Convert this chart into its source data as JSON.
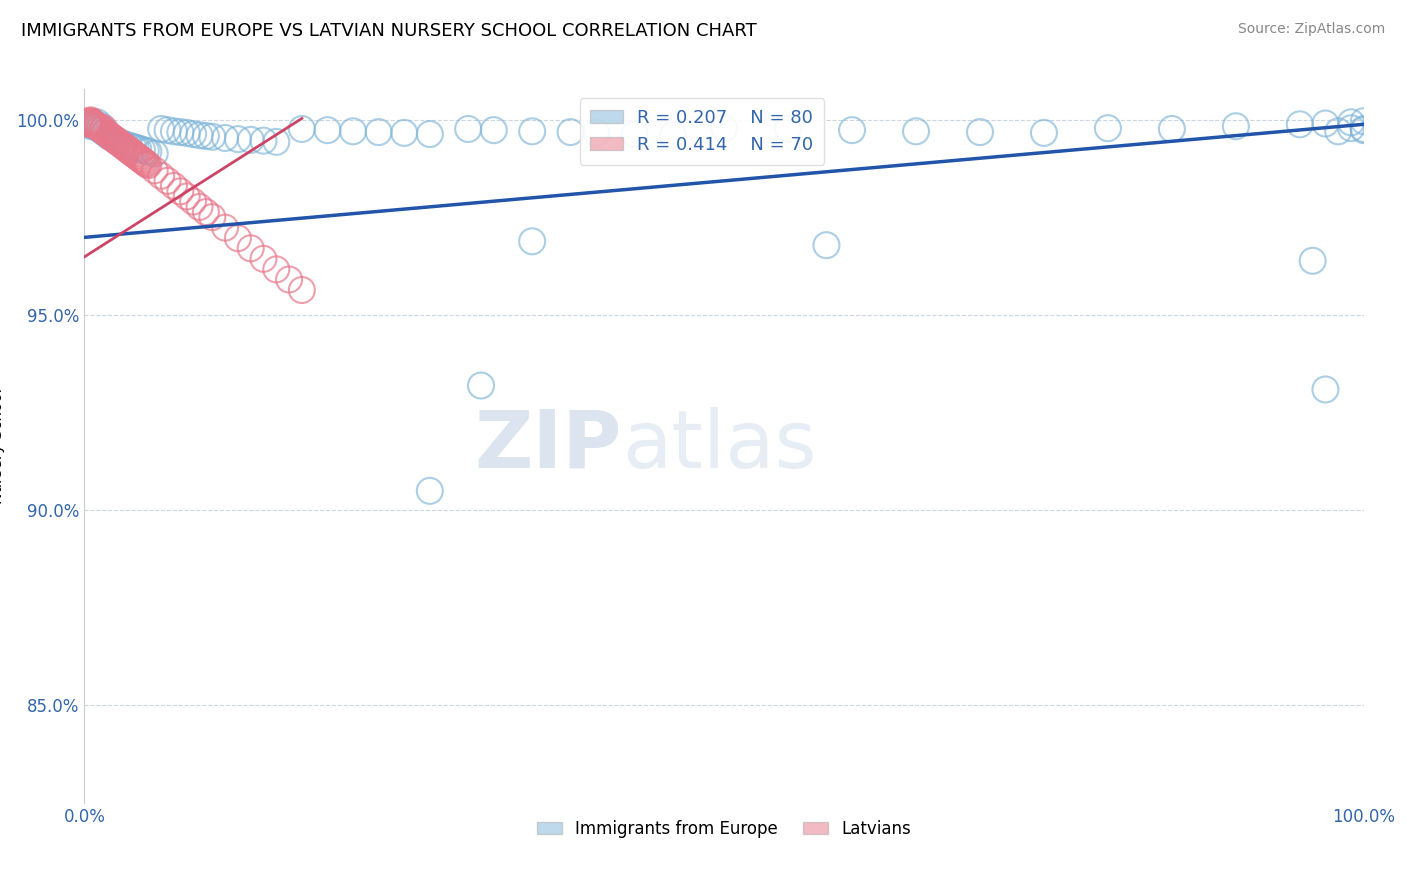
{
  "title": "IMMIGRANTS FROM EUROPE VS LATVIAN NURSERY SCHOOL CORRELATION CHART",
  "source": "Source: ZipAtlas.com",
  "ylabel": "Nursery School",
  "xlim": [
    0.0,
    1.0
  ],
  "ylim": [
    0.825,
    1.008
  ],
  "yticks": [
    0.85,
    0.9,
    0.95,
    1.0
  ],
  "ytick_labels": [
    "85.0%",
    "90.0%",
    "95.0%",
    "100.0%"
  ],
  "xtick_labels": [
    "0.0%",
    "100.0%"
  ],
  "legend_blue_r": "R = 0.207",
  "legend_blue_n": "N = 80",
  "legend_pink_r": "R = 0.414",
  "legend_pink_n": "N = 70",
  "legend_label_blue": "Immigrants from Europe",
  "legend_label_pink": "Latvians",
  "blue_color": "#7EB4D8",
  "pink_color": "#E8778A",
  "trend_blue_color": "#2255AA",
  "trend_pink_color": "#CC4466",
  "watermark_zip": "ZIP",
  "watermark_atlas": "atlas",
  "blue_scatter_x": [
    0.003,
    0.005,
    0.007,
    0.008,
    0.009,
    0.01,
    0.011,
    0.012,
    0.013,
    0.014,
    0.015,
    0.016,
    0.017,
    0.018,
    0.019,
    0.02,
    0.022,
    0.024,
    0.025,
    0.027,
    0.03,
    0.032,
    0.035,
    0.038,
    0.04,
    0.042,
    0.045,
    0.048,
    0.05,
    0.055,
    0.06,
    0.065,
    0.07,
    0.075,
    0.08,
    0.085,
    0.09,
    0.095,
    0.1,
    0.11,
    0.12,
    0.13,
    0.14,
    0.15,
    0.17,
    0.19,
    0.21,
    0.23,
    0.25,
    0.27,
    0.3,
    0.32,
    0.35,
    0.38,
    0.4,
    0.43,
    0.46,
    0.5,
    0.55,
    0.6,
    0.65,
    0.7,
    0.75,
    0.8,
    0.85,
    0.9,
    0.95,
    0.97,
    0.99,
    1.0,
    0.99,
    1.0,
    1.0,
    0.98,
    0.97,
    0.96,
    0.31,
    0.35,
    0.27,
    0.58
  ],
  "blue_scatter_y": [
    0.999,
    0.9985,
    0.9992,
    0.9988,
    0.9983,
    0.9995,
    0.998,
    0.9978,
    0.9986,
    0.9975,
    0.997,
    0.9968,
    0.9972,
    0.9965,
    0.996,
    0.9958,
    0.9955,
    0.995,
    0.9948,
    0.9945,
    0.994,
    0.9938,
    0.9935,
    0.9932,
    0.993,
    0.9928,
    0.9925,
    0.9922,
    0.992,
    0.9915,
    0.9978,
    0.9975,
    0.9972,
    0.997,
    0.9968,
    0.9965,
    0.9962,
    0.996,
    0.9958,
    0.9955,
    0.9952,
    0.995,
    0.9948,
    0.9945,
    0.9978,
    0.9975,
    0.9972,
    0.997,
    0.9968,
    0.9965,
    0.9978,
    0.9975,
    0.9972,
    0.997,
    0.9968,
    0.9965,
    0.9962,
    0.998,
    0.9978,
    0.9975,
    0.9972,
    0.997,
    0.9968,
    0.998,
    0.9978,
    0.9985,
    0.999,
    0.9992,
    0.9995,
    0.9998,
    0.998,
    0.9978,
    0.9975,
    0.9972,
    0.931,
    0.964,
    0.932,
    0.969,
    0.905,
    0.968
  ],
  "pink_scatter_x": [
    0.003,
    0.004,
    0.005,
    0.006,
    0.007,
    0.008,
    0.009,
    0.01,
    0.011,
    0.012,
    0.013,
    0.014,
    0.015,
    0.016,
    0.017,
    0.018,
    0.019,
    0.02,
    0.021,
    0.022,
    0.023,
    0.024,
    0.025,
    0.026,
    0.027,
    0.028,
    0.029,
    0.03,
    0.031,
    0.032,
    0.033,
    0.034,
    0.035,
    0.036,
    0.037,
    0.038,
    0.039,
    0.04,
    0.041,
    0.042,
    0.043,
    0.044,
    0.045,
    0.046,
    0.047,
    0.048,
    0.049,
    0.05,
    0.055,
    0.06,
    0.065,
    0.07,
    0.075,
    0.08,
    0.085,
    0.09,
    0.095,
    0.1,
    0.11,
    0.12,
    0.13,
    0.14,
    0.15,
    0.16,
    0.17,
    0.003,
    0.005,
    0.008,
    0.01,
    0.015
  ],
  "pink_scatter_y": [
    0.9995,
    0.9998,
    1.0,
    0.9997,
    0.9993,
    0.999,
    0.9988,
    0.9985,
    0.9983,
    0.998,
    0.9978,
    0.9975,
    0.9973,
    0.997,
    0.9968,
    0.9965,
    0.9963,
    0.996,
    0.9958,
    0.9955,
    0.9953,
    0.995,
    0.9948,
    0.9945,
    0.9943,
    0.994,
    0.9938,
    0.9935,
    0.9933,
    0.993,
    0.9928,
    0.9925,
    0.9923,
    0.992,
    0.9918,
    0.9915,
    0.9913,
    0.991,
    0.9908,
    0.9905,
    0.9903,
    0.99,
    0.9898,
    0.9895,
    0.9893,
    0.989,
    0.9888,
    0.9885,
    0.9872,
    0.9858,
    0.9845,
    0.9832,
    0.9818,
    0.9805,
    0.9792,
    0.9778,
    0.9765,
    0.9752,
    0.9725,
    0.9698,
    0.9672,
    0.9645,
    0.9618,
    0.9592,
    0.9565,
    0.9992,
    0.999,
    0.9988,
    0.9985,
    0.998
  ],
  "blue_trend_x": [
    0.0,
    1.0
  ],
  "blue_trend_y": [
    0.97,
    0.999
  ],
  "pink_trend_x": [
    0.0,
    0.17
  ],
  "pink_trend_y": [
    0.965,
    1.0005
  ]
}
